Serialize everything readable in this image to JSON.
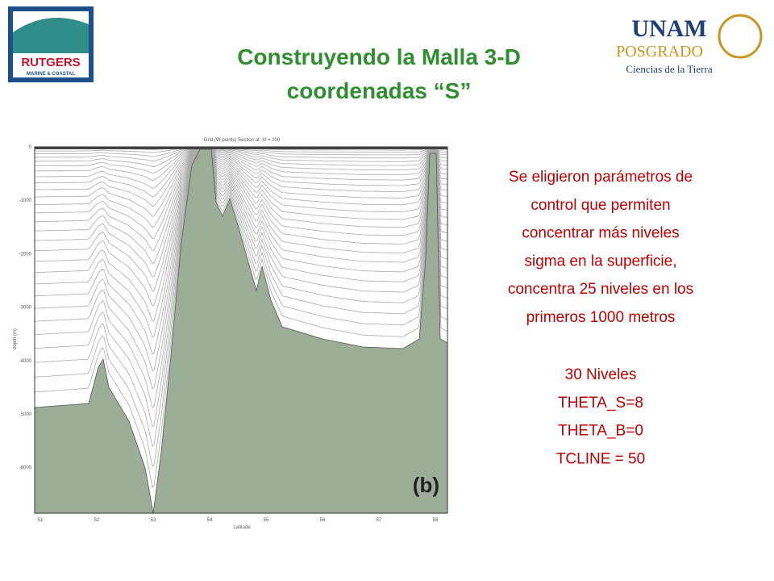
{
  "header": {
    "title_lines": [
      "Construyendo la Malla 3-D",
      "coordenadas “S”"
    ],
    "left_logo": {
      "lines": [
        "RUTGERS",
        "MARINE & COASTAL"
      ]
    },
    "right_logo": {
      "lines": [
        "UNAM",
        "POSGRADO",
        "Ciencias de la Tierra"
      ]
    }
  },
  "figure": {
    "title": "Grid (W-points) Section at: Xi = 200",
    "y_label": "depth (m)",
    "x_label": "Latitude",
    "y_ticks": [
      "0",
      "-1000",
      "-2000",
      "-3000",
      "-4000",
      "-5000",
      "-6000"
    ],
    "x_ticks": [
      "51",
      "52",
      "53",
      "54",
      "55",
      "56",
      "57",
      "58"
    ],
    "panel_label": "(b)"
  },
  "text": {
    "paragraph_lines": [
      "Se eligieron parámetros de",
      "control que permiten",
      "concentrar más niveles",
      "sigma en la superficie,",
      "concentra 25 niveles en los",
      "primeros 1000 metros"
    ],
    "parameters": [
      "30 Niveles",
      "THETA_S=8",
      "THETA_B=0",
      "TCLINE = 50"
    ]
  }
}
